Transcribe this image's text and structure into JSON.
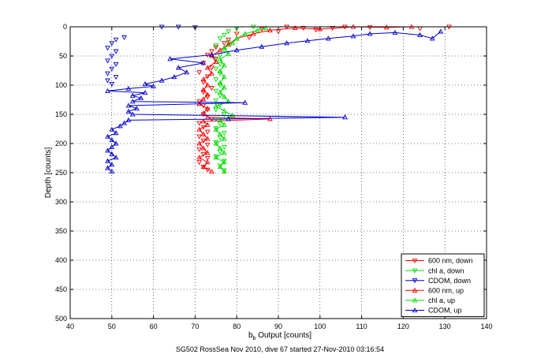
{
  "chart_data": {
    "type": "scatter",
    "xlabel_main": "b",
    "xlabel_sub": "b",
    "xlabel_rest": " Output [counts]",
    "ylabel": "Depth [counts]",
    "caption": "SG502 RossSea Nov 2010, dive 67 started 27-Nov-2010 03:16:54",
    "xlim": [
      40,
      140
    ],
    "ylim": [
      0,
      500
    ],
    "y_reversed": true,
    "xticks": [
      40,
      50,
      60,
      70,
      80,
      90,
      100,
      110,
      120,
      130,
      140
    ],
    "yticks": [
      0,
      50,
      100,
      150,
      200,
      250,
      300,
      350,
      400,
      450,
      500
    ],
    "grid": true,
    "legend_position": "bottom-right",
    "series": [
      {
        "name": "600 nm, down",
        "color": "#ff0000",
        "marker": "triangle-down",
        "line": false,
        "points": [
          [
            92,
            0
          ],
          [
            96,
            2
          ],
          [
            99,
            5
          ],
          [
            103,
            2
          ],
          [
            106,
            0
          ],
          [
            112,
            1
          ],
          [
            124,
            3
          ],
          [
            131,
            0
          ],
          [
            86,
            4
          ],
          [
            90,
            8
          ],
          [
            80,
            12
          ],
          [
            83,
            18
          ],
          [
            78,
            22
          ],
          [
            77,
            28
          ],
          [
            75,
            35
          ],
          [
            74,
            42
          ],
          [
            73,
            48
          ],
          [
            75,
            55
          ],
          [
            72,
            62
          ],
          [
            74,
            70
          ],
          [
            71,
            78
          ],
          [
            73,
            85
          ],
          [
            72,
            95
          ],
          [
            74,
            105
          ],
          [
            72,
            112
          ],
          [
            73,
            120
          ],
          [
            71,
            128
          ],
          [
            72,
            135
          ],
          [
            73,
            142
          ],
          [
            72,
            150
          ],
          [
            74,
            158
          ],
          [
            71,
            165
          ],
          [
            72,
            172
          ],
          [
            73,
            180
          ],
          [
            71,
            188
          ],
          [
            72,
            195
          ],
          [
            73,
            202
          ],
          [
            71,
            210
          ],
          [
            72,
            218
          ],
          [
            73,
            225
          ],
          [
            71,
            232
          ],
          [
            72,
            240
          ],
          [
            73,
            245
          ]
        ]
      },
      {
        "name": "chl a, down",
        "color": "#00dd00",
        "marker": "triangle-down",
        "line": false,
        "points": [
          [
            84,
            0
          ],
          [
            80,
            3
          ],
          [
            78,
            8
          ],
          [
            77,
            14
          ],
          [
            76,
            20
          ],
          [
            78,
            26
          ],
          [
            75,
            32
          ],
          [
            77,
            40
          ],
          [
            76,
            48
          ],
          [
            75,
            56
          ],
          [
            76,
            64
          ],
          [
            75,
            72
          ],
          [
            76,
            80
          ],
          [
            75,
            90
          ],
          [
            76,
            100
          ],
          [
            75,
            110
          ],
          [
            76,
            118
          ],
          [
            75,
            126
          ],
          [
            76,
            134
          ],
          [
            75,
            142
          ],
          [
            77,
            150
          ],
          [
            75,
            158
          ],
          [
            76,
            166
          ],
          [
            75,
            174
          ],
          [
            77,
            182
          ],
          [
            76,
            190
          ],
          [
            75,
            198
          ],
          [
            77,
            206
          ],
          [
            76,
            214
          ],
          [
            75,
            222
          ],
          [
            77,
            230
          ],
          [
            76,
            238
          ],
          [
            77,
            246
          ]
        ]
      },
      {
        "name": "CDOM, down",
        "color": "#0000cc",
        "marker": "triangle-down",
        "line": false,
        "points": [
          [
            62,
            0
          ],
          [
            66,
            0
          ],
          [
            70,
            1
          ],
          [
            53,
            18
          ],
          [
            51,
            22
          ],
          [
            50,
            28
          ],
          [
            49,
            36
          ],
          [
            51,
            42
          ],
          [
            50,
            50
          ],
          [
            49,
            58
          ],
          [
            51,
            64
          ],
          [
            50,
            72
          ],
          [
            49,
            80
          ],
          [
            51,
            86
          ],
          [
            49,
            92
          ],
          [
            50,
            98
          ]
        ]
      },
      {
        "name": "600 nm, up",
        "color": "#ff0000",
        "marker": "triangle-up",
        "line": true,
        "points": [
          [
            74,
            248
          ],
          [
            72,
            240
          ],
          [
            73,
            232
          ],
          [
            71,
            224
          ],
          [
            73,
            216
          ],
          [
            72,
            208
          ],
          [
            71,
            200
          ],
          [
            73,
            192
          ],
          [
            72,
            184
          ],
          [
            71,
            176
          ],
          [
            73,
            168
          ],
          [
            72,
            162
          ],
          [
            88,
            158
          ],
          [
            73,
            155
          ],
          [
            72,
            148
          ],
          [
            73,
            140
          ],
          [
            71,
            132
          ],
          [
            72,
            124
          ],
          [
            73,
            116
          ],
          [
            72,
            108
          ],
          [
            73,
            100
          ],
          [
            72,
            90
          ],
          [
            74,
            80
          ],
          [
            73,
            70
          ],
          [
            75,
            60
          ],
          [
            74,
            50
          ],
          [
            76,
            40
          ],
          [
            78,
            30
          ],
          [
            80,
            20
          ],
          [
            84,
            12
          ],
          [
            88,
            6
          ],
          [
            94,
            2
          ],
          [
            100,
            4
          ],
          [
            108,
            0
          ],
          [
            116,
            1
          ],
          [
            122,
            0
          ]
        ]
      },
      {
        "name": "chl a, up",
        "color": "#00dd00",
        "marker": "triangle-up",
        "line": true,
        "points": [
          [
            77,
            248
          ],
          [
            76,
            240
          ],
          [
            77,
            232
          ],
          [
            75,
            224
          ],
          [
            77,
            216
          ],
          [
            76,
            208
          ],
          [
            75,
            200
          ],
          [
            77,
            192
          ],
          [
            76,
            184
          ],
          [
            75,
            176
          ],
          [
            77,
            168
          ],
          [
            76,
            160
          ],
          [
            79,
            152
          ],
          [
            77,
            144
          ],
          [
            75,
            136
          ],
          [
            78,
            128
          ],
          [
            77,
            120
          ],
          [
            76,
            112
          ],
          [
            77,
            104
          ],
          [
            76,
            96
          ],
          [
            77,
            86
          ],
          [
            76,
            76
          ],
          [
            77,
            66
          ],
          [
            76,
            56
          ],
          [
            78,
            46
          ],
          [
            77,
            36
          ],
          [
            79,
            28
          ],
          [
            80,
            20
          ],
          [
            82,
            12
          ],
          [
            85,
            6
          ],
          [
            87,
            2
          ]
        ]
      },
      {
        "name": "CDOM, up",
        "color": "#0000cc",
        "marker": "triangle-up",
        "line": true,
        "points": [
          [
            50,
            248
          ],
          [
            49,
            242
          ],
          [
            50,
            236
          ],
          [
            49,
            230
          ],
          [
            51,
            224
          ],
          [
            50,
            218
          ],
          [
            49,
            212
          ],
          [
            50,
            206
          ],
          [
            51,
            200
          ],
          [
            50,
            194
          ],
          [
            49,
            188
          ],
          [
            51,
            182
          ],
          [
            50,
            176
          ],
          [
            52,
            170
          ],
          [
            53,
            165
          ],
          [
            54,
            160
          ],
          [
            78,
            158
          ],
          [
            106,
            155
          ],
          [
            55,
            150
          ],
          [
            54,
            145
          ],
          [
            56,
            140
          ],
          [
            54,
            135
          ],
          [
            82,
            130
          ],
          [
            55,
            128
          ],
          [
            57,
            122
          ],
          [
            55,
            118
          ],
          [
            58,
            113
          ],
          [
            49,
            110
          ],
          [
            54,
            106
          ],
          [
            60,
            102
          ],
          [
            58,
            98
          ],
          [
            62,
            92
          ],
          [
            65,
            86
          ],
          [
            68,
            78
          ],
          [
            66,
            70
          ],
          [
            72,
            62
          ],
          [
            64,
            55
          ],
          [
            74,
            48
          ],
          [
            80,
            40
          ],
          [
            86,
            34
          ],
          [
            92,
            28
          ],
          [
            97,
            24
          ],
          [
            102,
            20
          ],
          [
            108,
            16
          ],
          [
            112,
            12
          ],
          [
            118,
            10
          ],
          [
            124,
            14
          ],
          [
            127,
            20
          ],
          [
            129,
            8
          ]
        ]
      }
    ]
  }
}
